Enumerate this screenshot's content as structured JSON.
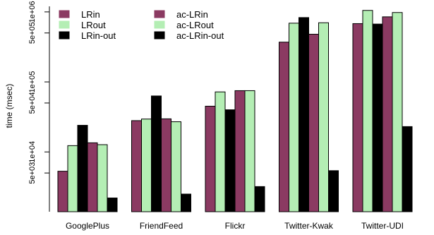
{
  "chart_data": {
    "type": "bar",
    "ylabel": "time (msec)",
    "yscale": "log",
    "ylim": [
      1400,
      1200000
    ],
    "yticks": [
      {
        "value": 5000,
        "label": "5e+03"
      },
      {
        "value": 10000,
        "label": "1e+04"
      },
      {
        "value": 50000,
        "label": "5e+04"
      },
      {
        "value": 100000,
        "label": "1e+05"
      },
      {
        "value": 500000,
        "label": "5e+05"
      },
      {
        "value": 1000000,
        "label": "1e+06"
      }
    ],
    "categories": [
      "GooglePlus",
      "FriendFeed",
      "Flickr",
      "Twitter-Kwak",
      "Twitter-UDI"
    ],
    "legend_position": "top-left",
    "series": [
      {
        "name": "LRin",
        "color": "#8B3A62",
        "values": [
          5300,
          28000,
          45000,
          370000,
          680000
        ]
      },
      {
        "name": "LRout",
        "color": "#B4EEB4",
        "values": [
          12300,
          29500,
          72000,
          690000,
          1050000
        ]
      },
      {
        "name": "LRin-out",
        "color": "#000000",
        "values": [
          24000,
          63000,
          40000,
          830000,
          670000
        ]
      },
      {
        "name": "ac-LRin",
        "color": "#8B3A62",
        "values": [
          13500,
          29700,
          75000,
          480000,
          850000
        ]
      },
      {
        "name": "ac-LRout",
        "color": "#B4EEB4",
        "values": [
          12700,
          27000,
          75000,
          700000,
          980000
        ]
      },
      {
        "name": "ac-LRin-out",
        "color": "#000000",
        "values": [
          2200,
          2500,
          3200,
          5400,
          23000
        ]
      }
    ]
  }
}
